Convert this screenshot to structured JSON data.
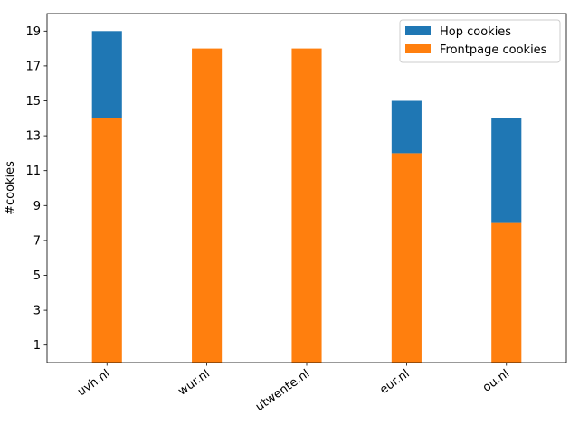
{
  "chart_data": {
    "type": "bar",
    "stacked": true,
    "categories": [
      "uvh.nl",
      "wur.nl",
      "utwente.nl",
      "eur.nl",
      "ou.nl"
    ],
    "series": [
      {
        "name": "Frontpage cookies",
        "values": [
          14,
          18,
          18,
          12,
          8
        ],
        "color": "#ff7f0e"
      },
      {
        "name": "Hop cookies",
        "values": [
          5,
          0,
          0,
          3,
          6
        ],
        "color": "#1f77b4"
      }
    ],
    "legend_order": [
      1,
      0
    ],
    "ylabel": "#cookies",
    "xlabel": "",
    "title": "",
    "ylim": [
      0,
      20
    ],
    "yticks": [
      1,
      3,
      5,
      7,
      9,
      11,
      13,
      15,
      17,
      19
    ],
    "grid": false,
    "legend_position": "top-right"
  }
}
